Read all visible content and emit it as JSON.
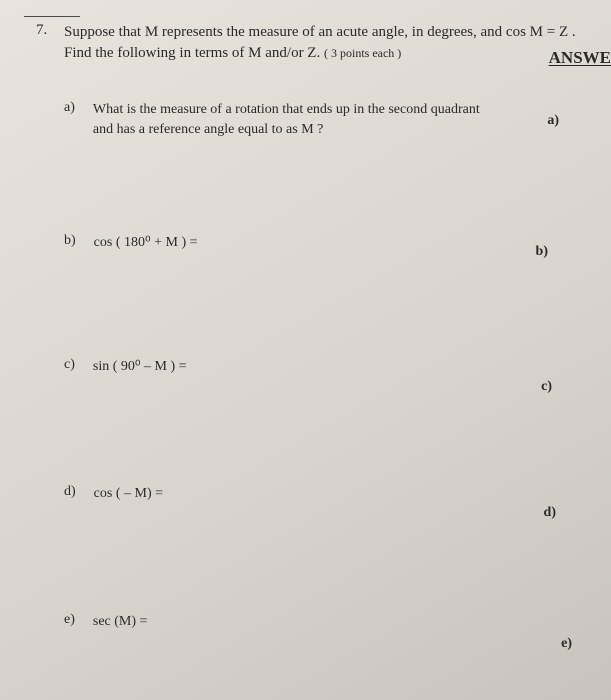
{
  "question": {
    "number": "7.",
    "line1": "Suppose that M represents the measure of an acute angle, in degrees, and cos M = Z .",
    "line2": "Find the following in terms of M and/or Z.",
    "points": "( 3 points each )"
  },
  "answer_heading": "ANSWE",
  "parts": {
    "a": {
      "letter": "a)",
      "text": "What is the measure of a rotation that ends up in the second quadrant and has a reference angle equal to as M ?",
      "answer_letter": "a)"
    },
    "b": {
      "letter": "b)",
      "text": "cos ( 180⁰ + M ) =",
      "answer_letter": "b)"
    },
    "c": {
      "letter": "c)",
      "text": "sin ( 90⁰ – M ) =",
      "answer_letter": "c)"
    },
    "d": {
      "letter": "d)",
      "text": "cos ( – M) =",
      "answer_letter": "d)"
    },
    "e": {
      "letter": "e)",
      "text": "sec (M) =",
      "answer_letter": "e)"
    }
  },
  "colors": {
    "text": "#2a2a2a",
    "bg_light": "#e8e4dd",
    "bg_dark": "#c8c4bd"
  }
}
